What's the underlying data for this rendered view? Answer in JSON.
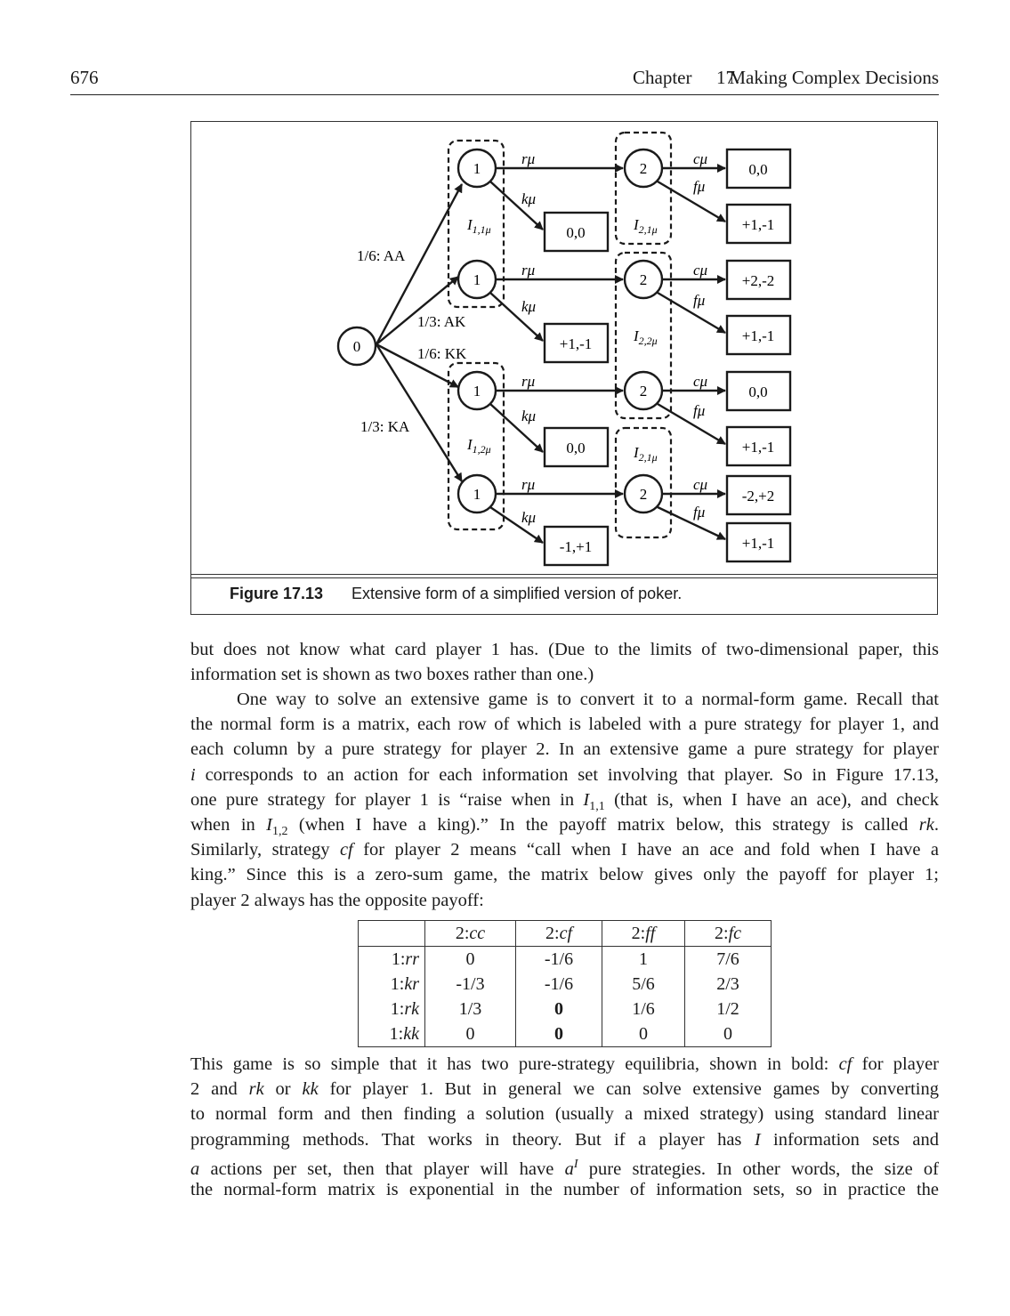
{
  "header": {
    "page_number": "676",
    "chapter_word": "Chapter",
    "chapter_number": "17.",
    "chapter_title": "Making Complex Decisions"
  },
  "figure": {
    "label": "Figure 17.13",
    "caption": "Extensive form of a simplified version of poker.",
    "root_node": "0",
    "chance_labels": [
      "1/6: AA",
      "1/3: AK",
      "1/6: KK",
      "1/3: KA"
    ],
    "player1_node": "1",
    "player2_node": "2",
    "p1_actions": [
      "rμ",
      "kμ"
    ],
    "p2_actions": [
      "cμ",
      "fμ"
    ],
    "info_sets": {
      "I11": {
        "base": "I",
        "sub": "1,1μ"
      },
      "I12": {
        "base": "I",
        "sub": "1,2μ"
      },
      "I21a": {
        "base": "I",
        "sub": "2,1μ"
      },
      "I22": {
        "base": "I",
        "sub": "2,2μ"
      },
      "I21b": {
        "base": "I",
        "sub": "2,1μ"
      }
    },
    "k_payoffs": [
      "0,0",
      "+1,-1",
      "0,0",
      "-1,+1"
    ],
    "c_payoffs": [
      "0,0",
      "+2,-2",
      "0,0",
      "-2,+2"
    ],
    "f_payoffs": [
      "+1,-1",
      "+1,-1",
      "+1,-1",
      "+1,-1"
    ]
  },
  "paragraph1": [
    "but does not know what card player 1 has. (Due to the limits of two-dimensional paper, this",
    "information set is shown as two boxes rather than one.)"
  ],
  "paragraph2": {
    "l1": "One way to solve an extensive game is to convert it to a normal-form game. Recall that",
    "l2": "the normal form is a matrix, each row of which is labeled with a pure strategy for player 1, and",
    "l3": "each column by a pure strategy for player 2. In an extensive game a pure strategy for player",
    "l4_i": "i",
    "l4": " corresponds to an action for each information set involving that player. So in Figure 17.13,",
    "l5a": "one pure strategy for player 1 is “raise when in ",
    "l5_I": "I",
    "l5_sub": "1,1",
    "l5b": " (that is, when I have an ace), and check",
    "l6a": "when in ",
    "l6_I": "I",
    "l6_sub": "1,2",
    "l6b": " (when I have a king).” In the payoff matrix below, this strategy is called ",
    "l6_rk": "rk",
    "l6c": ".",
    "l7a": "Similarly, strategy ",
    "l7_cf": "cf",
    "l7b": " for player 2 means “call when I have an ace and fold when I have a",
    "l8": "king.” Since this is a zero-sum game, the matrix below gives only the payoff for player 1;",
    "l9": "player 2 always has the opposite payoff:"
  },
  "table": {
    "col_prefix": "2:",
    "columns": [
      "cc",
      "cf",
      "ff",
      "fc"
    ],
    "row_prefix": "1:",
    "rows": [
      {
        "label": "rr",
        "cells": [
          "0",
          "-1/6",
          "1",
          "7/6"
        ]
      },
      {
        "label": "kr",
        "cells": [
          "-1/3",
          "-1/6",
          "5/6",
          "2/3"
        ]
      },
      {
        "label": "rk",
        "cells": [
          "1/3",
          "0",
          "1/6",
          "1/2"
        ]
      },
      {
        "label": "kk",
        "cells": [
          "0",
          "0",
          "0",
          "0"
        ]
      }
    ]
  },
  "paragraph3": {
    "l1a": "This game is so simple that it has two pure-strategy equilibria, shown in bold: ",
    "l1_cf": "cf",
    "l1b": " for player",
    "l2a": "2 and ",
    "l2_rk": "rk",
    "l2b": " or ",
    "l2_kk": "kk",
    "l2c": " for player 1. But in general we can solve extensive games by converting",
    "l3": "to normal form and then finding a solution (usually a mixed strategy) using standard linear",
    "l4a": "programming methods. That works in theory. But if a player has ",
    "l4_I": "I",
    "l4b": " information sets and",
    "l5_a": "a",
    "l5a": " actions per set, then that player will have ",
    "l5_pow_a": "a",
    "l5_pow_I": "I",
    "l5b": " pure strategies. In other words, the size of",
    "l6": "the normal-form matrix is exponential in the number of information sets, so in practice the"
  }
}
